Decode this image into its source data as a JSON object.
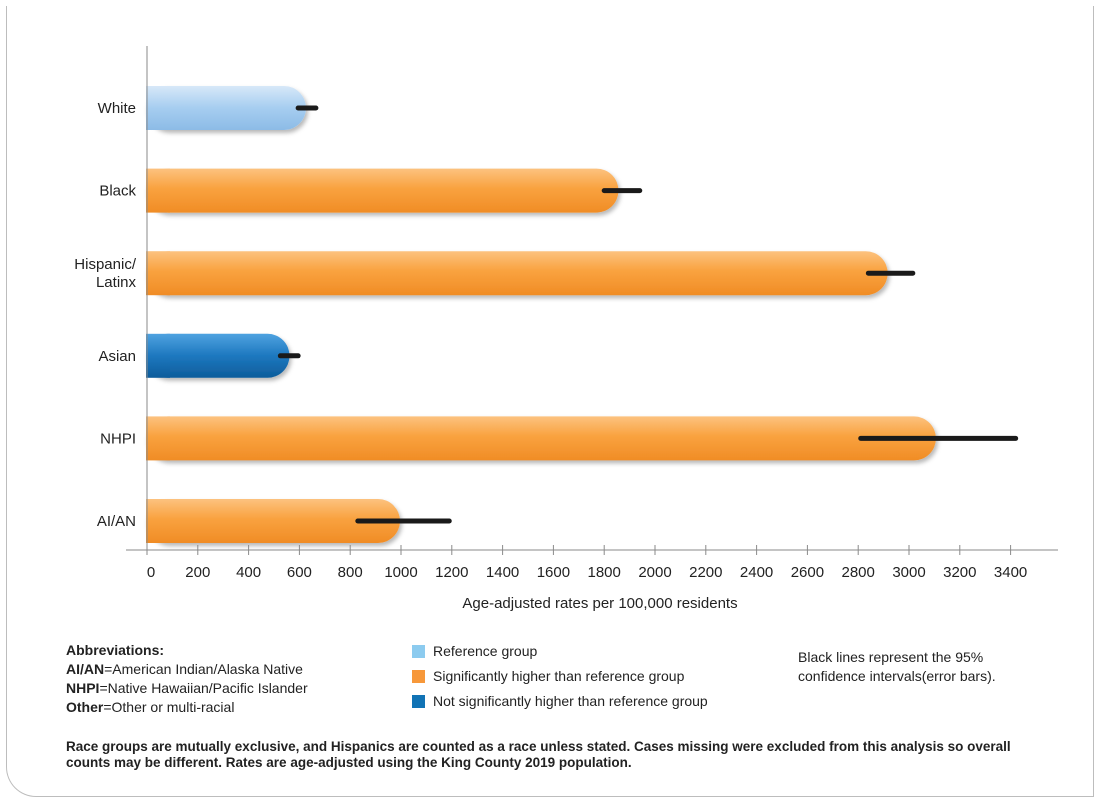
{
  "chart_data": {
    "type": "bar",
    "orientation": "horizontal",
    "categories": [
      "White",
      "Black",
      "Hispanic/Latinx",
      "Asian",
      "NHPI",
      "AI/AN"
    ],
    "category_lines": [
      [
        "White"
      ],
      [
        "Black"
      ],
      [
        "Hispanic/",
        "Latinx"
      ],
      [
        "Asian"
      ],
      [
        "NHPI"
      ],
      [
        "AI/AN"
      ]
    ],
    "values": [
      630,
      1860,
      2920,
      565,
      3110,
      1000
    ],
    "ci_low": [
      595,
      1800,
      2840,
      525,
      2810,
      830
    ],
    "ci_high": [
      665,
      1940,
      3015,
      595,
      3420,
      1190
    ],
    "groups": [
      "reference",
      "significant",
      "significant",
      "not_significant",
      "significant",
      "significant"
    ],
    "xlabel": "Age-adjusted rates per 100,000 residents",
    "xlim": [
      0,
      3500
    ],
    "xticks": [
      0,
      200,
      400,
      600,
      800,
      1000,
      1200,
      1400,
      1600,
      1800,
      2000,
      2200,
      2400,
      2600,
      2800,
      3000,
      3200,
      3400
    ],
    "grid": false,
    "colors": {
      "reference": "#a9cff0",
      "significant": "#f9a44a",
      "not_significant": "#1d78bf",
      "error_bar": "#1a1a1a"
    }
  },
  "legend": {
    "reference": "Reference group",
    "significant": "Significantly higher than reference group",
    "not_significant": "Not significantly higher than reference group",
    "colors": {
      "reference": "#8ccbef",
      "significant": "#f7983a",
      "not_significant": "#1173b5"
    }
  },
  "abbreviations": {
    "heading": "Abbreviations:",
    "items": [
      {
        "abbr": "AI/AN",
        "meaning": "=American Indian/Alaska Native"
      },
      {
        "abbr": "NHPI",
        "meaning": "=Native Hawaiian/Pacific Islander"
      },
      {
        "abbr": "Other",
        "meaning": "=Other or multi-racial"
      }
    ]
  },
  "ci_note": "Black lines represent the 95% confidence intervals(error bars).",
  "footnote": "Race groups are mutually exclusive, and Hispanics are counted as a race unless stated. Cases missing were excluded from this analysis so overall counts may be different. Rates are age-adjusted using the King County 2019 population."
}
